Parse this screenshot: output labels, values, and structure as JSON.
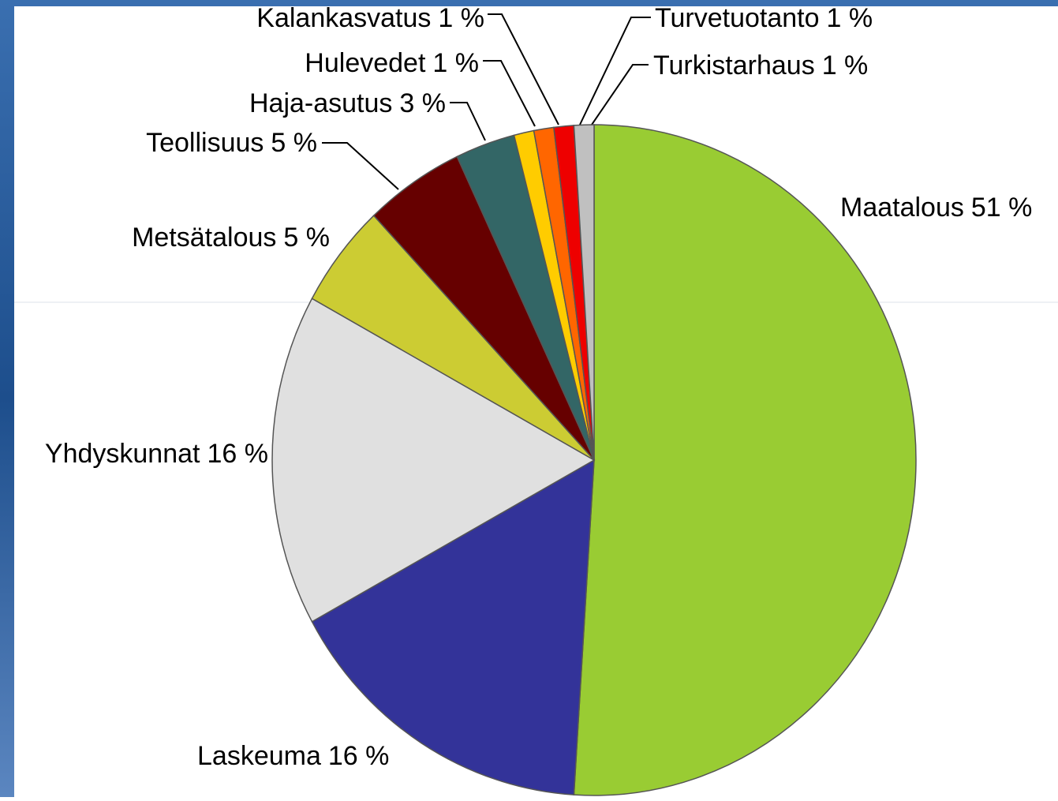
{
  "chart_data": {
    "type": "pie",
    "categories": [
      "Maatalous",
      "Laskeuma",
      "Yhdyskunnat",
      "Metsätalous",
      "Teollisuus",
      "Haja-asutus",
      "Hulevedet",
      "Kalankasvatus",
      "Turvetuotanto",
      "Turkistarhaus"
    ],
    "values": [
      51,
      16,
      16,
      5,
      5,
      3,
      1,
      1,
      1,
      1
    ],
    "value_labels": [
      "51 %",
      "16 %",
      "16 %",
      "5 %",
      "5 %",
      "3 %",
      "1 %",
      "1 %",
      "1 %",
      "1 %"
    ],
    "colors": [
      "#99cc33",
      "#333399",
      "#e0e0e0",
      "#cccc33",
      "#660000",
      "#336666",
      "#ffcc00",
      "#ff6600",
      "#ee0000",
      "#c0c0c0"
    ]
  }
}
